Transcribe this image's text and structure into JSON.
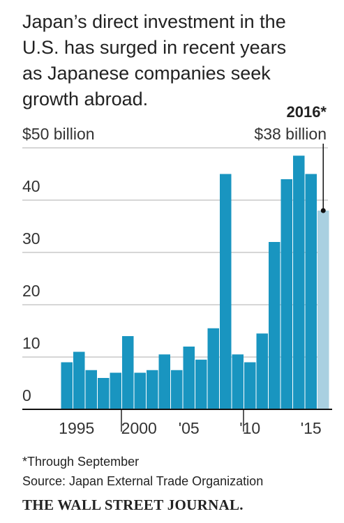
{
  "chart_data": {
    "type": "bar",
    "title": [
      "Japan’s direct investment in the",
      "U.S. has surged in recent years",
      "as Japanese companies seek",
      "growth abroad."
    ],
    "categories": [
      "1995",
      null,
      null,
      null,
      null,
      "2000",
      null,
      null,
      null,
      null,
      "'05",
      null,
      null,
      null,
      null,
      "'10",
      null,
      null,
      null,
      null,
      "'15",
      null
    ],
    "values": [
      9,
      11,
      7.5,
      6,
      7,
      14,
      7,
      7.5,
      10.5,
      7.5,
      12,
      9.5,
      15.5,
      45,
      10.5,
      9,
      14.5,
      32,
      44,
      48.5,
      45,
      38
    ],
    "colors": [
      "#1995c0",
      "#1995c0",
      "#1995c0",
      "#1995c0",
      "#1995c0",
      "#1995c0",
      "#1995c0",
      "#1995c0",
      "#1995c0",
      "#1995c0",
      "#1995c0",
      "#1995c0",
      "#1995c0",
      "#1995c0",
      "#1995c0",
      "#1995c0",
      "#1995c0",
      "#1995c0",
      "#1995c0",
      "#1995c0",
      "#1995c0",
      "#a9d0e1"
    ],
    "ylim": [
      0,
      50
    ],
    "yticks": [
      0,
      10,
      20,
      30,
      40,
      {
        "value": 50,
        "label": "$50 billion"
      }
    ],
    "grid": true,
    "annotation": {
      "title": "2016*",
      "text": "$38 billion"
    },
    "footnote": "*Through September",
    "source": "Source: Japan External Trade Organization",
    "brand": "THE WALL STREET JOURNAL."
  }
}
